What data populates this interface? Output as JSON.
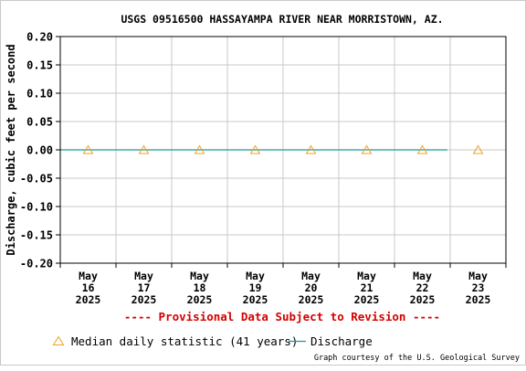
{
  "chart_data": {
    "type": "line",
    "title": "USGS 09516500 HASSAYAMPA RIVER NEAR MORRISTOWN, AZ.",
    "ylabel": "Discharge, cubic feet per second",
    "xlabel": "",
    "ylim": [
      -0.2,
      0.2
    ],
    "yticks": [
      "0.20",
      "0.15",
      "0.10",
      "0.05",
      "0.00",
      "-0.05",
      "-0.10",
      "-0.15",
      "-0.20"
    ],
    "x_categories": [
      [
        "May",
        "16",
        "2025"
      ],
      [
        "May",
        "17",
        "2025"
      ],
      [
        "May",
        "18",
        "2025"
      ],
      [
        "May",
        "19",
        "2025"
      ],
      [
        "May",
        "20",
        "2025"
      ],
      [
        "May",
        "21",
        "2025"
      ],
      [
        "May",
        "22",
        "2025"
      ],
      [
        "May",
        "23",
        "2025"
      ]
    ],
    "grid": true,
    "series": [
      {
        "name": "Median daily statistic (41 years)",
        "kind": "markers",
        "marker": "triangle",
        "color": "#f0a020",
        "x": [
          0,
          1,
          2,
          3,
          4,
          5,
          6,
          7
        ],
        "y": [
          0.0,
          0.0,
          0.0,
          0.0,
          0.0,
          0.0,
          0.0,
          0.0
        ]
      },
      {
        "name": "Discharge",
        "kind": "line",
        "color": "#1a9a9a",
        "x_start": -0.5,
        "x_end": 6.45,
        "y": 0.0
      }
    ],
    "legend_position": "bottom-left"
  },
  "notes": {
    "provisional": "---- Provisional Data Subject to Revision ----",
    "credit": "Graph courtesy of the U.S. Geological Survey"
  }
}
